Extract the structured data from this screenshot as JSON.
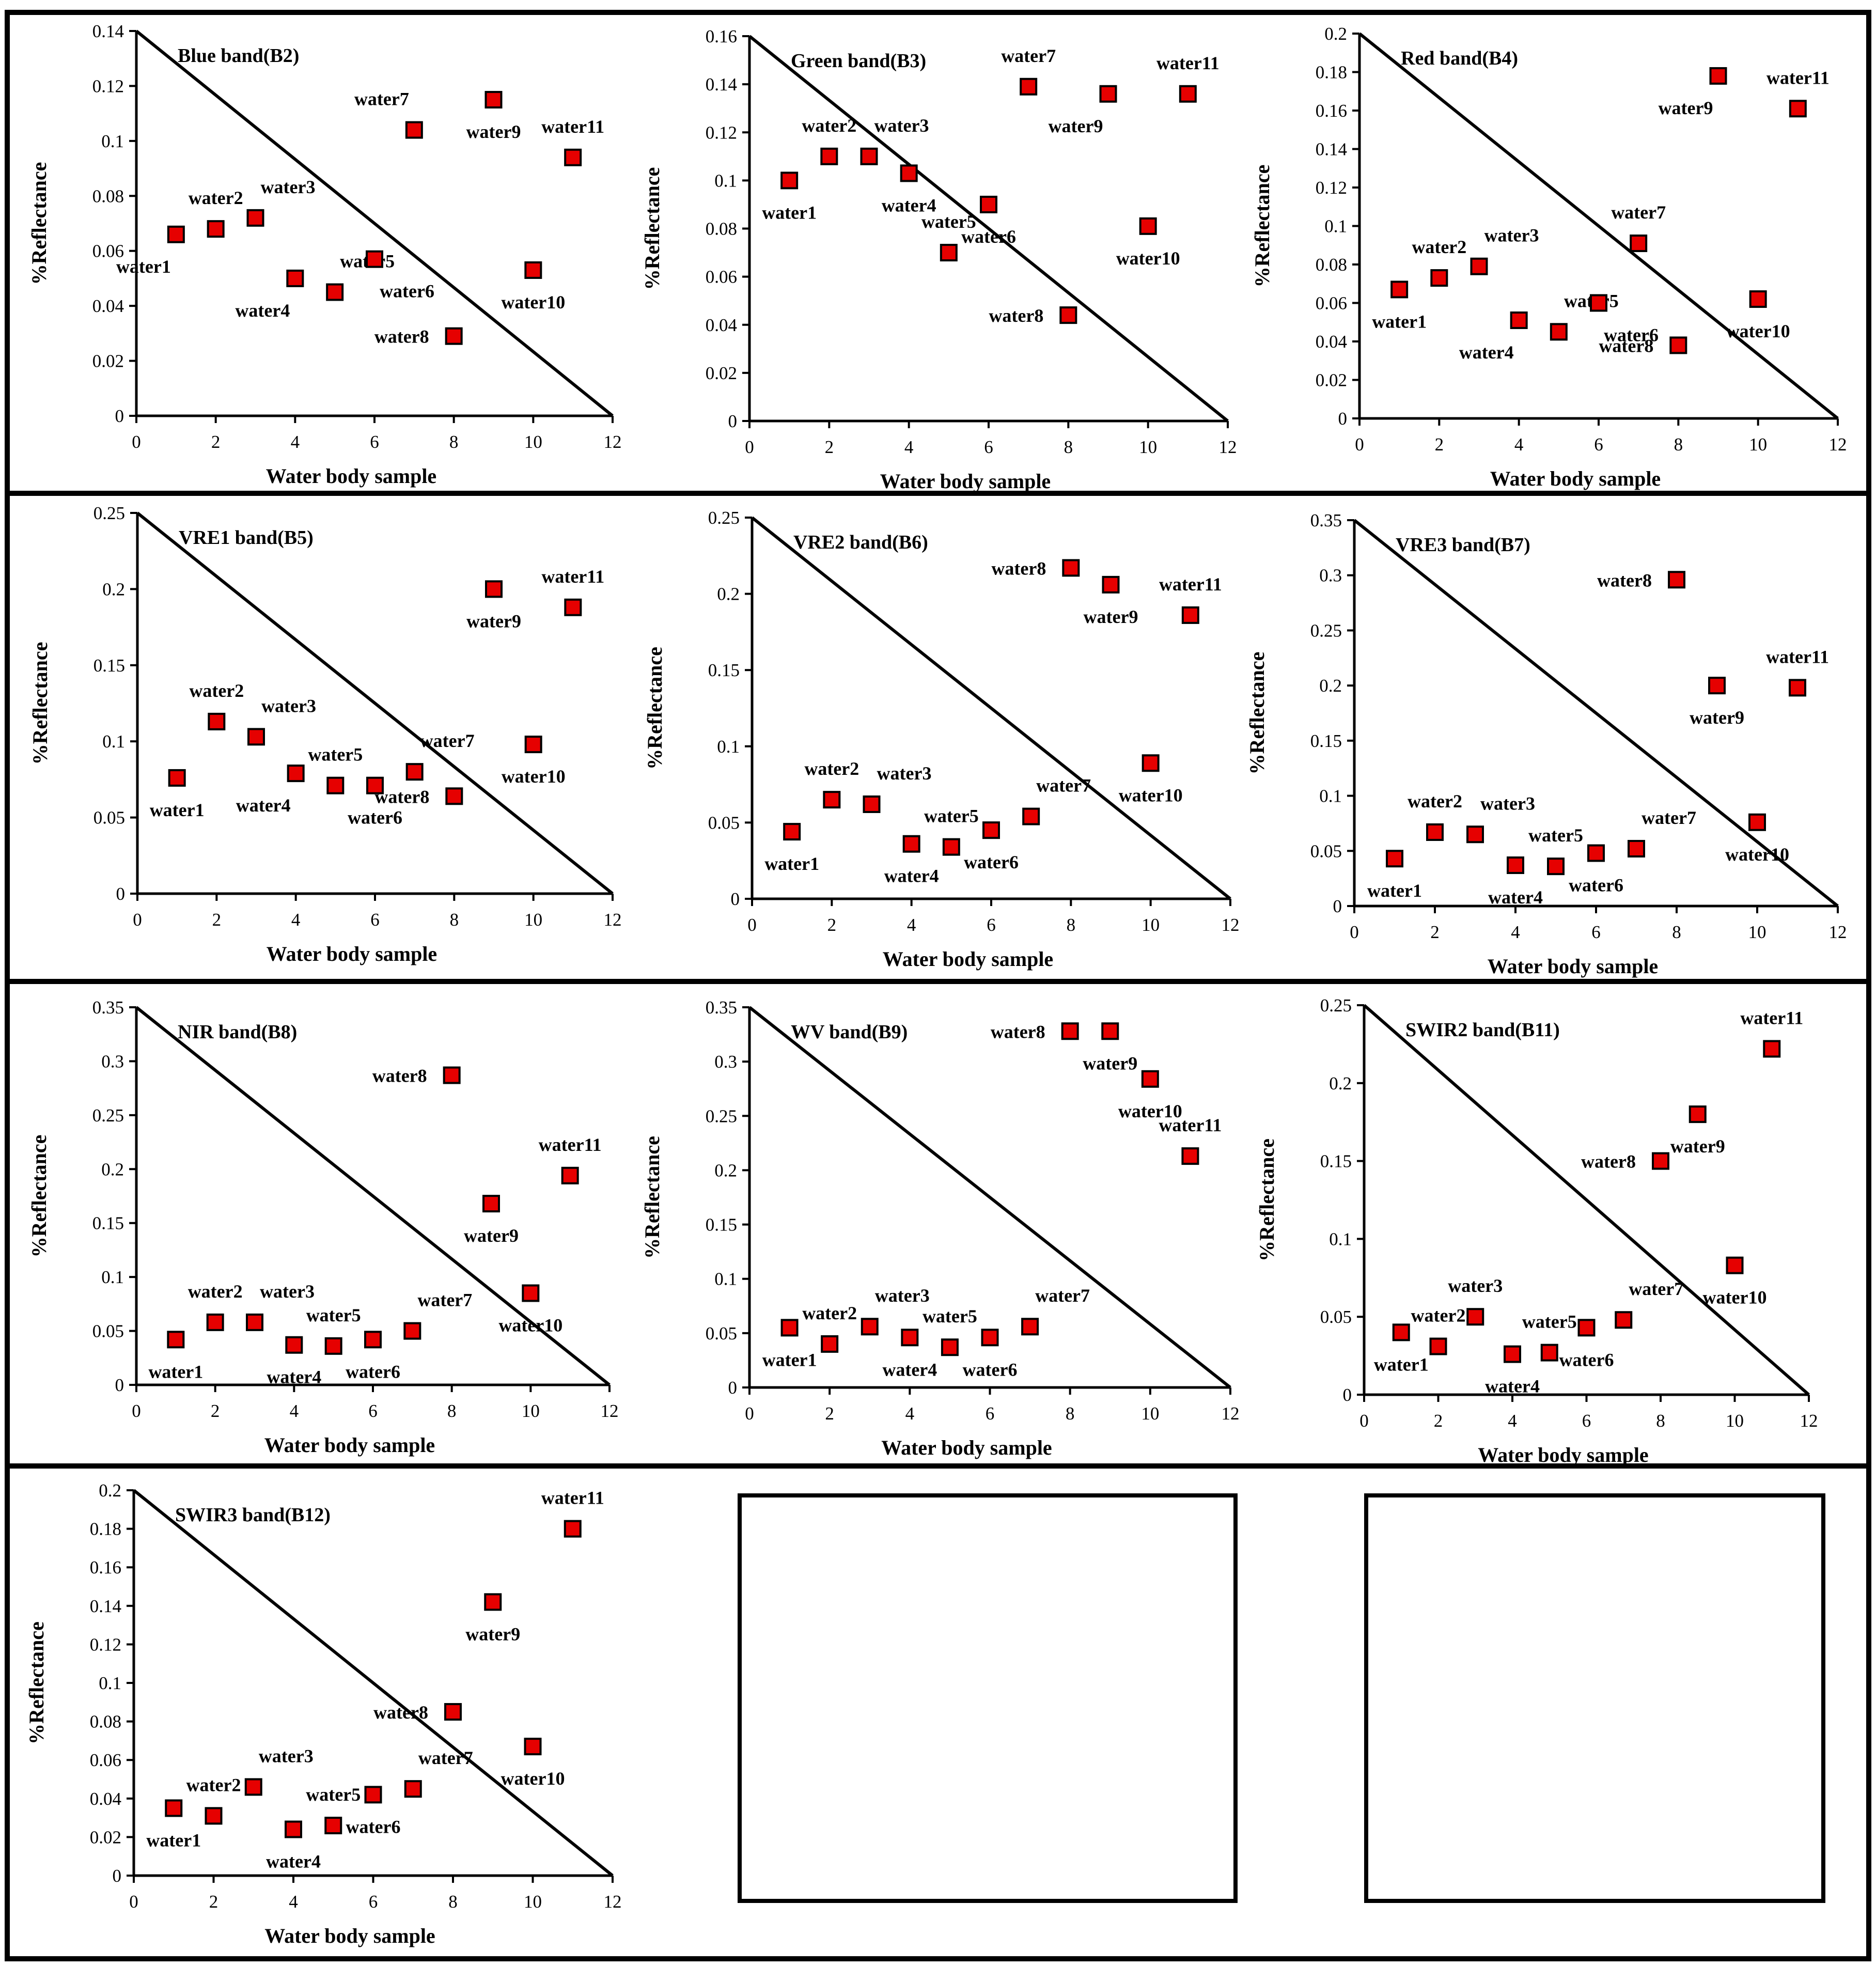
{
  "figure": {
    "layout": "four rows of scatter panels with reference diagonal lines",
    "empty_panels": 2
  },
  "colors": {
    "marker_fill": "#e60000",
    "marker_stroke": "#000000",
    "line": "#000000"
  },
  "chart_data": [
    {
      "type": "scatter",
      "title": "Blue band(B2)",
      "xlabel": "Water body sample",
      "ylabel": "%Reflectance",
      "xlim": [
        0,
        12
      ],
      "ylim": [
        0,
        0.14
      ],
      "xticks": [
        "0",
        "2",
        "4",
        "6",
        "8",
        "10",
        "12"
      ],
      "yticks": [
        "0",
        "0.02",
        "0.04",
        "0.06",
        "0.08",
        "0.1",
        "0.12",
        "0.14"
      ],
      "diagonal": {
        "from": [
          0,
          0.14
        ],
        "to": [
          12,
          0
        ]
      },
      "points": [
        {
          "label": "water1",
          "x": 1,
          "y": 0.066,
          "lpos": "bl"
        },
        {
          "label": "water2",
          "x": 2,
          "y": 0.068,
          "lpos": "t"
        },
        {
          "label": "water3",
          "x": 3,
          "y": 0.072,
          "lpos": "tr"
        },
        {
          "label": "water4",
          "x": 4,
          "y": 0.05,
          "lpos": "bl"
        },
        {
          "label": "water5",
          "x": 5,
          "y": 0.045,
          "lpos": "tr"
        },
        {
          "label": "water6",
          "x": 6,
          "y": 0.057,
          "lpos": "br"
        },
        {
          "label": "water7",
          "x": 7,
          "y": 0.104,
          "lpos": "tl"
        },
        {
          "label": "water8",
          "x": 8,
          "y": 0.029,
          "lpos": "l"
        },
        {
          "label": "water9",
          "x": 9,
          "y": 0.115,
          "lpos": "b"
        },
        {
          "label": "water10",
          "x": 10,
          "y": 0.053,
          "lpos": "b"
        },
        {
          "label": "water11",
          "x": 11,
          "y": 0.094,
          "lpos": "t"
        }
      ]
    },
    {
      "type": "scatter",
      "title": "Green band(B3)",
      "xlabel": "Water body sample",
      "ylabel": "%Reflectance",
      "xlim": [
        0,
        12
      ],
      "ylim": [
        0,
        0.16
      ],
      "xticks": [
        "0",
        "2",
        "4",
        "6",
        "8",
        "10",
        "12"
      ],
      "yticks": [
        "0",
        "0.02",
        "0.04",
        "0.06",
        "0.08",
        "0.1",
        "0.12",
        "0.14",
        "0.16"
      ],
      "diagonal": {
        "from": [
          0,
          0.16
        ],
        "to": [
          12,
          0
        ]
      },
      "points": [
        {
          "label": "water1",
          "x": 1,
          "y": 0.1,
          "lpos": "b"
        },
        {
          "label": "water2",
          "x": 2,
          "y": 0.11,
          "lpos": "t"
        },
        {
          "label": "water3",
          "x": 3,
          "y": 0.11,
          "lpos": "tr"
        },
        {
          "label": "water4",
          "x": 4,
          "y": 0.103,
          "lpos": "b"
        },
        {
          "label": "water5",
          "x": 5,
          "y": 0.07,
          "lpos": "t"
        },
        {
          "label": "water6",
          "x": 6,
          "y": 0.09,
          "lpos": "b"
        },
        {
          "label": "water7",
          "x": 7,
          "y": 0.139,
          "lpos": "t"
        },
        {
          "label": "water8",
          "x": 8,
          "y": 0.044,
          "lpos": "l"
        },
        {
          "label": "water9",
          "x": 9,
          "y": 0.136,
          "lpos": "bl"
        },
        {
          "label": "water10",
          "x": 10,
          "y": 0.081,
          "lpos": "b"
        },
        {
          "label": "water11",
          "x": 11,
          "y": 0.136,
          "lpos": "t"
        }
      ]
    },
    {
      "type": "scatter",
      "title": "Red band(B4)",
      "xlabel": "Water body sample",
      "ylabel": "%Reflectance",
      "xlim": [
        0,
        12
      ],
      "ylim": [
        0,
        0.2
      ],
      "xticks": [
        "0",
        "2",
        "4",
        "6",
        "8",
        "10",
        "12"
      ],
      "yticks": [
        "0",
        "0.02",
        "0.04",
        "0.06",
        "0.08",
        "0.1",
        "0.12",
        "0.14",
        "0.16",
        "0.18",
        "0.2"
      ],
      "diagonal": {
        "from": [
          0,
          0.2
        ],
        "to": [
          12,
          0
        ]
      },
      "points": [
        {
          "label": "water1",
          "x": 1,
          "y": 0.067,
          "lpos": "b"
        },
        {
          "label": "water2",
          "x": 2,
          "y": 0.073,
          "lpos": "t"
        },
        {
          "label": "water3",
          "x": 3,
          "y": 0.079,
          "lpos": "tr"
        },
        {
          "label": "water4",
          "x": 4,
          "y": 0.051,
          "lpos": "bl"
        },
        {
          "label": "water5",
          "x": 5,
          "y": 0.045,
          "lpos": "tr"
        },
        {
          "label": "water6",
          "x": 6,
          "y": 0.06,
          "lpos": "br"
        },
        {
          "label": "water7",
          "x": 7,
          "y": 0.091,
          "lpos": "t"
        },
        {
          "label": "water8",
          "x": 8,
          "y": 0.038,
          "lpos": "l"
        },
        {
          "label": "water9",
          "x": 9,
          "y": 0.178,
          "lpos": "bl"
        },
        {
          "label": "water10",
          "x": 10,
          "y": 0.062,
          "lpos": "b"
        },
        {
          "label": "water11",
          "x": 11,
          "y": 0.161,
          "lpos": "t"
        }
      ]
    },
    {
      "type": "scatter",
      "title": "VRE1 band(B5)",
      "xlabel": "Water body sample",
      "ylabel": "%Reflectance",
      "xlim": [
        0,
        12
      ],
      "ylim": [
        0,
        0.25
      ],
      "xticks": [
        "0",
        "2",
        "4",
        "6",
        "8",
        "10",
        "12"
      ],
      "yticks": [
        "0",
        "0.05",
        "0.1",
        "0.15",
        "0.2",
        "0.25"
      ],
      "diagonal": {
        "from": [
          0,
          0.25
        ],
        "to": [
          12,
          0
        ]
      },
      "points": [
        {
          "label": "water1",
          "x": 1,
          "y": 0.076,
          "lpos": "b"
        },
        {
          "label": "water2",
          "x": 2,
          "y": 0.113,
          "lpos": "t"
        },
        {
          "label": "water3",
          "x": 3,
          "y": 0.103,
          "lpos": "tr"
        },
        {
          "label": "water4",
          "x": 4,
          "y": 0.079,
          "lpos": "bl"
        },
        {
          "label": "water5",
          "x": 5,
          "y": 0.071,
          "lpos": "t"
        },
        {
          "label": "water6",
          "x": 6,
          "y": 0.071,
          "lpos": "b"
        },
        {
          "label": "water7",
          "x": 7,
          "y": 0.08,
          "lpos": "tr"
        },
        {
          "label": "water8",
          "x": 8,
          "y": 0.064,
          "lpos": "l"
        },
        {
          "label": "water9",
          "x": 9,
          "y": 0.2,
          "lpos": "b"
        },
        {
          "label": "water10",
          "x": 10,
          "y": 0.098,
          "lpos": "b"
        },
        {
          "label": "water11",
          "x": 11,
          "y": 0.188,
          "lpos": "t"
        }
      ]
    },
    {
      "type": "scatter",
      "title": "VRE2 band(B6)",
      "xlabel": "Water body sample",
      "ylabel": "%Reflectance",
      "xlim": [
        0,
        12
      ],
      "ylim": [
        0,
        0.25
      ],
      "xticks": [
        "0",
        "2",
        "4",
        "6",
        "8",
        "10",
        "12"
      ],
      "yticks": [
        "0",
        "0.05",
        "0.1",
        "0.15",
        "0.2",
        "0.25"
      ],
      "diagonal": {
        "from": [
          0,
          0.25
        ],
        "to": [
          12,
          0
        ]
      },
      "points": [
        {
          "label": "water1",
          "x": 1,
          "y": 0.044,
          "lpos": "b"
        },
        {
          "label": "water2",
          "x": 2,
          "y": 0.065,
          "lpos": "t"
        },
        {
          "label": "water3",
          "x": 3,
          "y": 0.062,
          "lpos": "tr"
        },
        {
          "label": "water4",
          "x": 4,
          "y": 0.036,
          "lpos": "b"
        },
        {
          "label": "water5",
          "x": 5,
          "y": 0.034,
          "lpos": "t"
        },
        {
          "label": "water6",
          "x": 6,
          "y": 0.045,
          "lpos": "b"
        },
        {
          "label": "water7",
          "x": 7,
          "y": 0.054,
          "lpos": "tr"
        },
        {
          "label": "water8",
          "x": 8,
          "y": 0.217,
          "lpos": "l"
        },
        {
          "label": "water9",
          "x": 9,
          "y": 0.206,
          "lpos": "b"
        },
        {
          "label": "water10",
          "x": 10,
          "y": 0.089,
          "lpos": "b"
        },
        {
          "label": "water11",
          "x": 11,
          "y": 0.186,
          "lpos": "t"
        }
      ]
    },
    {
      "type": "scatter",
      "title": "VRE3 band(B7)",
      "xlabel": "Water body sample",
      "ylabel": "%Reflectance",
      "xlim": [
        0,
        12
      ],
      "ylim": [
        0,
        0.35
      ],
      "xticks": [
        "0",
        "2",
        "4",
        "6",
        "8",
        "10",
        "12"
      ],
      "yticks": [
        "0",
        "0.05",
        "0.1",
        "0.15",
        "0.2",
        "0.25",
        "0.3",
        "0.35"
      ],
      "diagonal": {
        "from": [
          0,
          0.35
        ],
        "to": [
          12,
          0
        ]
      },
      "points": [
        {
          "label": "water1",
          "x": 1,
          "y": 0.043,
          "lpos": "b"
        },
        {
          "label": "water2",
          "x": 2,
          "y": 0.067,
          "lpos": "t"
        },
        {
          "label": "water3",
          "x": 3,
          "y": 0.065,
          "lpos": "tr"
        },
        {
          "label": "water4",
          "x": 4,
          "y": 0.037,
          "lpos": "b"
        },
        {
          "label": "water5",
          "x": 5,
          "y": 0.036,
          "lpos": "t"
        },
        {
          "label": "water6",
          "x": 6,
          "y": 0.048,
          "lpos": "b"
        },
        {
          "label": "water7",
          "x": 7,
          "y": 0.052,
          "lpos": "tr"
        },
        {
          "label": "water8",
          "x": 8,
          "y": 0.296,
          "lpos": "l"
        },
        {
          "label": "water9",
          "x": 9,
          "y": 0.2,
          "lpos": "b"
        },
        {
          "label": "water10",
          "x": 10,
          "y": 0.076,
          "lpos": "b"
        },
        {
          "label": "water11",
          "x": 11,
          "y": 0.198,
          "lpos": "t"
        }
      ]
    },
    {
      "type": "scatter",
      "title": "NIR band(B8)",
      "xlabel": "Water body sample",
      "ylabel": "%Reflectance",
      "xlim": [
        0,
        12
      ],
      "ylim": [
        0,
        0.35
      ],
      "xticks": [
        "0",
        "2",
        "4",
        "6",
        "8",
        "10",
        "12"
      ],
      "yticks": [
        "0",
        "0.05",
        "0.1",
        "0.15",
        "0.2",
        "0.25",
        "0.3",
        "0.35"
      ],
      "diagonal": {
        "from": [
          0,
          0.35
        ],
        "to": [
          12,
          0
        ]
      },
      "points": [
        {
          "label": "water1",
          "x": 1,
          "y": 0.042,
          "lpos": "b"
        },
        {
          "label": "water2",
          "x": 2,
          "y": 0.058,
          "lpos": "t"
        },
        {
          "label": "water3",
          "x": 3,
          "y": 0.058,
          "lpos": "tr"
        },
        {
          "label": "water4",
          "x": 4,
          "y": 0.037,
          "lpos": "b"
        },
        {
          "label": "water5",
          "x": 5,
          "y": 0.036,
          "lpos": "t"
        },
        {
          "label": "water6",
          "x": 6,
          "y": 0.042,
          "lpos": "b"
        },
        {
          "label": "water7",
          "x": 7,
          "y": 0.05,
          "lpos": "tr"
        },
        {
          "label": "water8",
          "x": 8,
          "y": 0.287,
          "lpos": "l"
        },
        {
          "label": "water9",
          "x": 9,
          "y": 0.168,
          "lpos": "b"
        },
        {
          "label": "water10",
          "x": 10,
          "y": 0.085,
          "lpos": "b"
        },
        {
          "label": "water11",
          "x": 11,
          "y": 0.194,
          "lpos": "t"
        }
      ]
    },
    {
      "type": "scatter",
      "title": "WV band(B9)",
      "xlabel": "Water body sample",
      "ylabel": "%Reflectance",
      "xlim": [
        0,
        12
      ],
      "ylim": [
        0,
        0.35
      ],
      "xticks": [
        "0",
        "2",
        "4",
        "6",
        "8",
        "10",
        "12"
      ],
      "yticks": [
        "0",
        "0.05",
        "0.1",
        "0.15",
        "0.2",
        "0.25",
        "0.3",
        "0.35"
      ],
      "diagonal": {
        "from": [
          0,
          0.35
        ],
        "to": [
          12,
          0
        ]
      },
      "points": [
        {
          "label": "water1",
          "x": 1,
          "y": 0.055,
          "lpos": "b"
        },
        {
          "label": "water2",
          "x": 2,
          "y": 0.04,
          "lpos": "t"
        },
        {
          "label": "water3",
          "x": 3,
          "y": 0.056,
          "lpos": "tr"
        },
        {
          "label": "water4",
          "x": 4,
          "y": 0.046,
          "lpos": "b"
        },
        {
          "label": "water5",
          "x": 5,
          "y": 0.037,
          "lpos": "t"
        },
        {
          "label": "water6",
          "x": 6,
          "y": 0.046,
          "lpos": "b"
        },
        {
          "label": "water7",
          "x": 7,
          "y": 0.056,
          "lpos": "tr"
        },
        {
          "label": "water8",
          "x": 8,
          "y": 0.328,
          "lpos": "l"
        },
        {
          "label": "water9",
          "x": 9,
          "y": 0.328,
          "lpos": "b"
        },
        {
          "label": "water10",
          "x": 10,
          "y": 0.284,
          "lpos": "b"
        },
        {
          "label": "water11",
          "x": 11,
          "y": 0.213,
          "lpos": "t"
        }
      ]
    },
    {
      "type": "scatter",
      "title": "SWIR2 band(B11)",
      "xlabel": "Water body sample",
      "ylabel": "%Reflectance",
      "xlim": [
        0,
        12
      ],
      "ylim": [
        0,
        0.25
      ],
      "xticks": [
        "0",
        "2",
        "4",
        "6",
        "8",
        "10",
        "12"
      ],
      "yticks": [
        "0",
        "0.05",
        "0.1",
        "0.15",
        "0.2",
        "0.25"
      ],
      "diagonal": {
        "from": [
          0,
          0.25
        ],
        "to": [
          12,
          0
        ]
      },
      "points": [
        {
          "label": "water1",
          "x": 1,
          "y": 0.04,
          "lpos": "b"
        },
        {
          "label": "water2",
          "x": 2,
          "y": 0.031,
          "lpos": "t"
        },
        {
          "label": "water3",
          "x": 3,
          "y": 0.05,
          "lpos": "t"
        },
        {
          "label": "water4",
          "x": 4,
          "y": 0.026,
          "lpos": "b"
        },
        {
          "label": "water5",
          "x": 5,
          "y": 0.027,
          "lpos": "t"
        },
        {
          "label": "water6",
          "x": 6,
          "y": 0.043,
          "lpos": "b"
        },
        {
          "label": "water7",
          "x": 7,
          "y": 0.048,
          "lpos": "tr"
        },
        {
          "label": "water8",
          "x": 8,
          "y": 0.15,
          "lpos": "l"
        },
        {
          "label": "water9",
          "x": 9,
          "y": 0.18,
          "lpos": "b"
        },
        {
          "label": "water10",
          "x": 10,
          "y": 0.083,
          "lpos": "b"
        },
        {
          "label": "water11",
          "x": 11,
          "y": 0.222,
          "lpos": "t"
        }
      ]
    },
    {
      "type": "scatter",
      "title": "SWIR3 band(B12)",
      "xlabel": "Water body sample",
      "ylabel": "%Reflectance",
      "xlim": [
        0,
        12
      ],
      "ylim": [
        0,
        0.2
      ],
      "xticks": [
        "0",
        "2",
        "4",
        "6",
        "8",
        "10",
        "12"
      ],
      "yticks": [
        "0",
        "0.02",
        "0.04",
        "0.06",
        "0.08",
        "0.1",
        "0.12",
        "0.14",
        "0.16",
        "0.18",
        "0.2"
      ],
      "diagonal": {
        "from": [
          0,
          0.2
        ],
        "to": [
          12,
          0
        ]
      },
      "points": [
        {
          "label": "water1",
          "x": 1,
          "y": 0.035,
          "lpos": "b"
        },
        {
          "label": "water2",
          "x": 2,
          "y": 0.031,
          "lpos": "t"
        },
        {
          "label": "water3",
          "x": 3,
          "y": 0.046,
          "lpos": "tr"
        },
        {
          "label": "water4",
          "x": 4,
          "y": 0.024,
          "lpos": "b"
        },
        {
          "label": "water5",
          "x": 5,
          "y": 0.026,
          "lpos": "t"
        },
        {
          "label": "water6",
          "x": 6,
          "y": 0.042,
          "lpos": "b"
        },
        {
          "label": "water7",
          "x": 7,
          "y": 0.045,
          "lpos": "tr"
        },
        {
          "label": "water8",
          "x": 8,
          "y": 0.085,
          "lpos": "l"
        },
        {
          "label": "water9",
          "x": 9,
          "y": 0.142,
          "lpos": "b"
        },
        {
          "label": "water10",
          "x": 10,
          "y": 0.067,
          "lpos": "b"
        },
        {
          "label": "water11",
          "x": 11,
          "y": 0.18,
          "lpos": "t"
        }
      ]
    }
  ]
}
